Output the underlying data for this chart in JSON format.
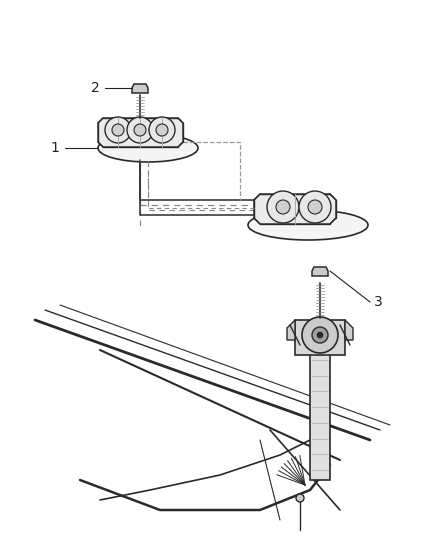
{
  "bg_color": "#ffffff",
  "line_color": "#2a2a2a",
  "dashed_color": "#888888",
  "label_color": "#222222",
  "label_fontsize": 10,
  "figsize": [
    4.38,
    5.33
  ],
  "dpi": 100
}
